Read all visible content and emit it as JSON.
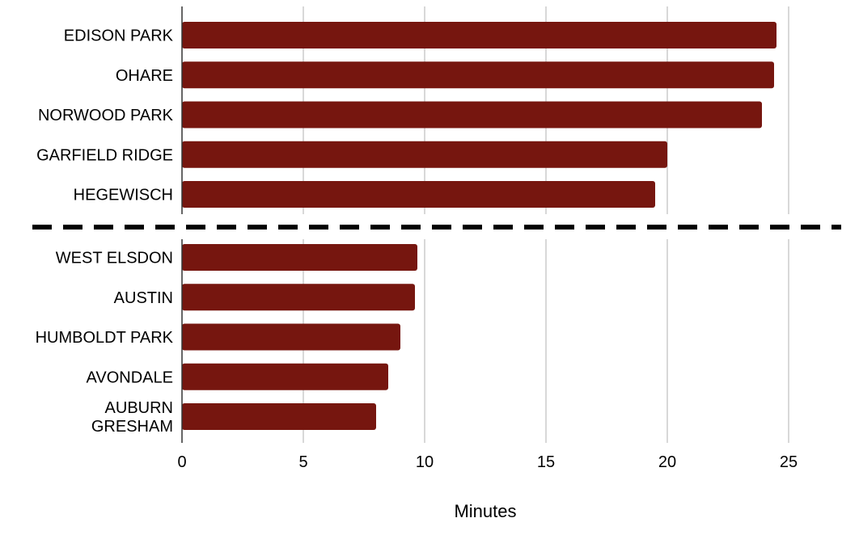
{
  "chart_data": {
    "type": "bar",
    "orientation": "horizontal",
    "xlabel": "Minutes",
    "xlim": [
      0,
      27.5
    ],
    "xticks": [
      0,
      5,
      10,
      15,
      20,
      25
    ],
    "grid": true,
    "bar_color": "#76160F",
    "separator": {
      "style": "dashed",
      "color": "#000000"
    },
    "groups": [
      {
        "categories": [
          [
            "EDISON PARK"
          ],
          [
            "OHARE"
          ],
          [
            "NORWOOD PARK"
          ],
          [
            "GARFIELD RIDGE"
          ],
          [
            "HEGEWISCH"
          ]
        ],
        "values": [
          24.5,
          24.4,
          23.9,
          20.0,
          19.5
        ]
      },
      {
        "categories": [
          [
            "WEST ELSDON"
          ],
          [
            "AUSTIN"
          ],
          [
            "HUMBOLDT PARK"
          ],
          [
            "AVONDALE"
          ],
          [
            "AUBURN",
            "GRESHAM"
          ]
        ],
        "values": [
          9.7,
          9.6,
          9.0,
          8.5,
          8.0
        ]
      }
    ]
  }
}
